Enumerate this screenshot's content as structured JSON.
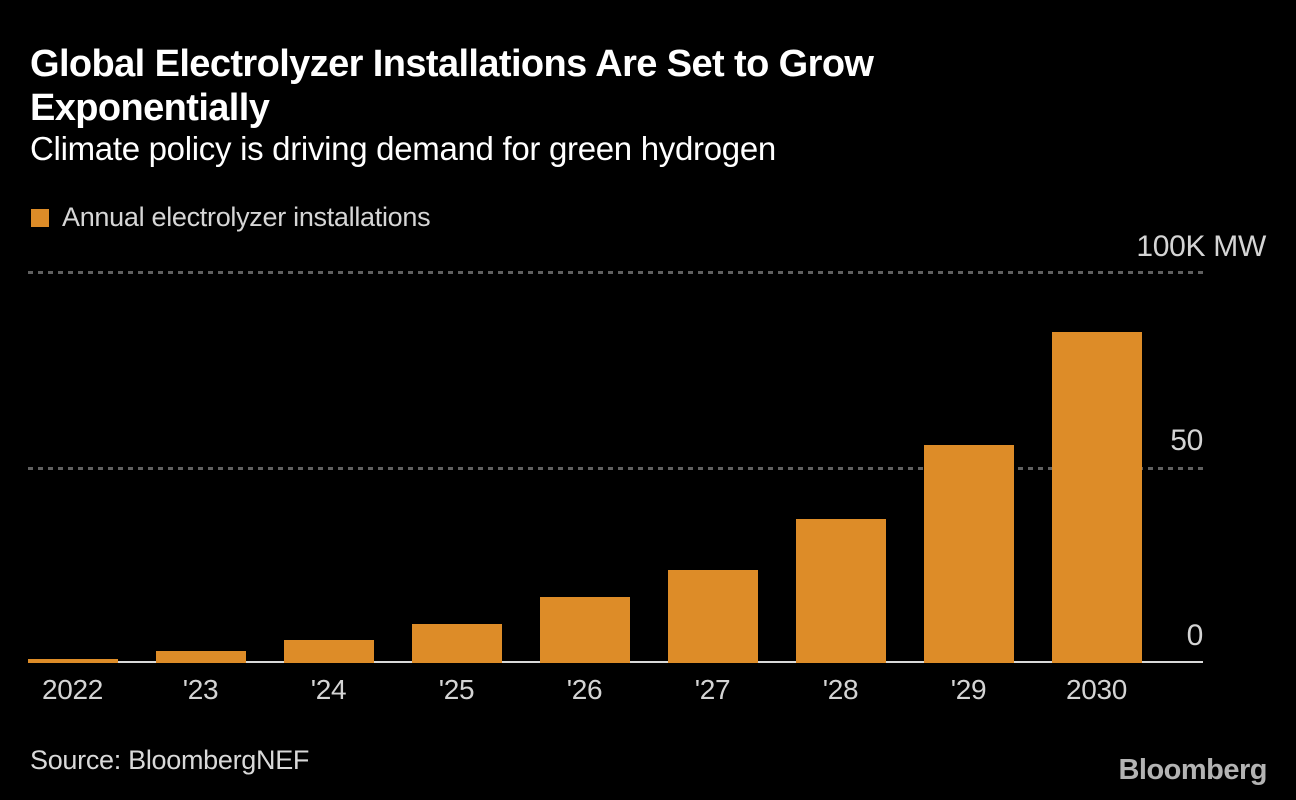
{
  "header": {
    "title_line1": "Global Electrolyzer Installations Are Set to Grow",
    "title_line2": "Exponentially",
    "subtitle": "Climate policy is driving demand for green hydrogen"
  },
  "legend": {
    "label": "Annual electrolyzer installations",
    "swatch_color": "#DD8C28"
  },
  "chart_data": {
    "type": "bar",
    "title": "Global Electrolyzer Installations Are Set to Grow Exponentially",
    "subtitle": "Climate policy is driving demand for green hydrogen",
    "series_name": "Annual electrolyzer installations",
    "categories": [
      "2022",
      "'23",
      "'24",
      "'25",
      "'26",
      "'27",
      "'28",
      "'29",
      "2030"
    ],
    "values": [
      1,
      3,
      6,
      10,
      17,
      24,
      37,
      56,
      85
    ],
    "unit": "K MW",
    "ylim": [
      0,
      100
    ],
    "yticks": [
      {
        "value": 100,
        "label": "100K MW"
      },
      {
        "value": 50,
        "label": "50"
      },
      {
        "value": 0,
        "label": "0"
      }
    ],
    "grid": "horizontal dashed lines at 50 and 100, solid baseline at 0",
    "legend_position": "top-left",
    "bar_color": "#DD8C28",
    "background_color": "#000000",
    "text_color": "#d4d4d4"
  },
  "footer": {
    "source": "Source: BloombergNEF",
    "logo": "Bloomberg"
  }
}
